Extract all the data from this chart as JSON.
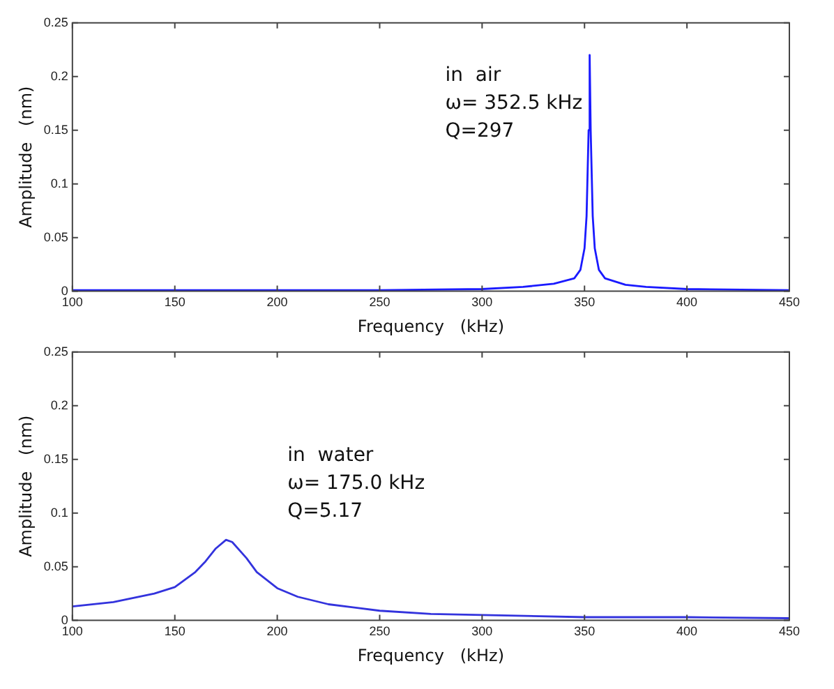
{
  "chart_data": [
    {
      "type": "line",
      "xlabel": "Frequency   (kHz)",
      "ylabel": "Amplitude   (nm)",
      "annotations": [
        "in  air",
        "ω= 352.5 kHz",
        "Q=297"
      ],
      "xlim": [
        100,
        450
      ],
      "xticks": [
        100,
        150,
        200,
        250,
        300,
        350,
        400,
        450
      ],
      "ylim": [
        0,
        0.25
      ],
      "yticks": [
        0,
        0.05,
        0.1,
        0.15,
        0.2,
        0.25
      ],
      "grid": false,
      "legend": false,
      "marker": "none",
      "series": [
        {
          "color": "#1a1aff",
          "x": [
            100,
            250,
            300,
            320,
            335,
            345,
            348,
            350,
            351,
            352,
            352.5,
            353,
            354,
            355,
            357,
            360,
            370,
            380,
            400,
            450
          ],
          "values": [
            0.001,
            0.001,
            0.002,
            0.004,
            0.007,
            0.012,
            0.02,
            0.04,
            0.07,
            0.15,
            0.22,
            0.15,
            0.07,
            0.04,
            0.02,
            0.012,
            0.006,
            0.004,
            0.002,
            0.001
          ]
        }
      ]
    },
    {
      "type": "line",
      "xlabel": "Frequency   (kHz)",
      "ylabel": "Amplitude   (nm)",
      "annotations": [
        "in  water",
        "ω= 175.0 kHz",
        "Q=5.17"
      ],
      "xlim": [
        100,
        450
      ],
      "xticks": [
        100,
        150,
        200,
        250,
        300,
        350,
        400,
        450
      ],
      "ylim": [
        0,
        0.25
      ],
      "yticks": [
        0,
        0.05,
        0.1,
        0.15,
        0.2,
        0.25
      ],
      "grid": false,
      "legend": false,
      "marker": "none",
      "series": [
        {
          "color": "#3333dd",
          "x": [
            100,
            120,
            140,
            150,
            160,
            165,
            170,
            175,
            178,
            185,
            190,
            200,
            210,
            225,
            250,
            275,
            300,
            350,
            400,
            450
          ],
          "values": [
            0.013,
            0.017,
            0.025,
            0.031,
            0.045,
            0.055,
            0.067,
            0.075,
            0.073,
            0.058,
            0.045,
            0.03,
            0.022,
            0.015,
            0.009,
            0.006,
            0.005,
            0.003,
            0.003,
            0.002
          ]
        }
      ]
    }
  ]
}
